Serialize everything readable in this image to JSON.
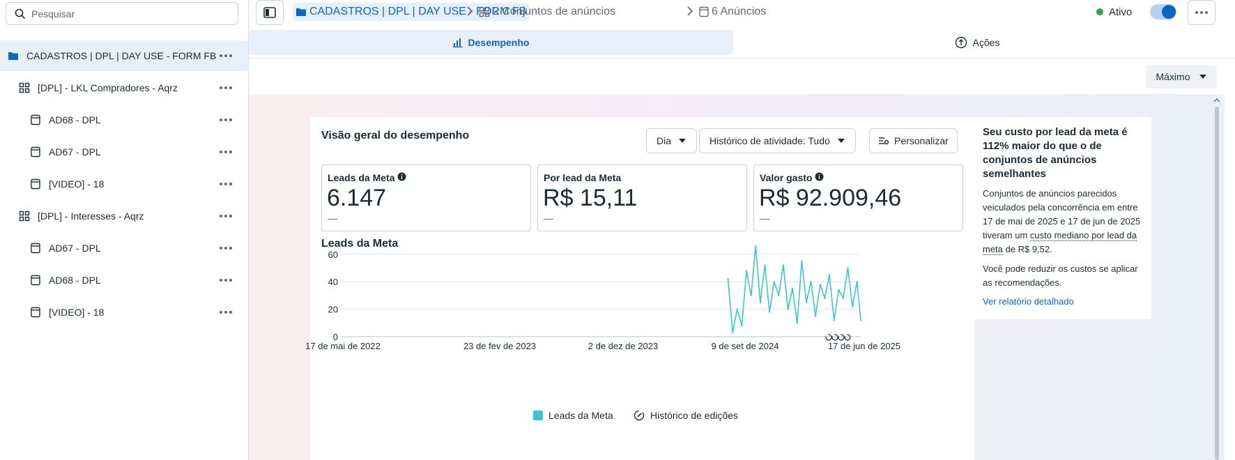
{
  "search": {
    "placeholder": "Pesquisar"
  },
  "tree": [
    {
      "label": "CADASTROS | DPL | DAY USE - FORM FB",
      "type": "campaign",
      "selected": true
    },
    {
      "label": "[DPL] - LKL Compradores - Aqrz",
      "type": "adset"
    },
    {
      "label": "AD68 - DPL",
      "type": "ad"
    },
    {
      "label": "AD67 - DPL",
      "type": "ad"
    },
    {
      "label": "[VIDEO] - 18",
      "type": "ad"
    },
    {
      "label": "[DPL] - Interesses - Aqrz",
      "type": "adset"
    },
    {
      "label": "AD67 - DPL",
      "type": "ad"
    },
    {
      "label": "AD68 - DPL",
      "type": "ad"
    },
    {
      "label": "[VIDEO] - 18",
      "type": "ad"
    }
  ],
  "breadcrumb": {
    "campaign": "CADASTROS | DPL | DAY USE - FORM FB",
    "adsets": "2 Conjuntos de anúncios",
    "ads": "6 Anúncios"
  },
  "status": {
    "label": "Ativo",
    "on": true,
    "color": "#31a24c"
  },
  "tabs": {
    "performance": "Desempenho",
    "actions": "Ações"
  },
  "range_button": "Máximo",
  "overview": {
    "title": "Visão geral do desempenho",
    "period": "Dia",
    "history": "Histórico de atividade: Tudo",
    "customize": "Personalizar"
  },
  "metrics": [
    {
      "label": "Leads da Meta",
      "value": "6.147",
      "delta": "—",
      "info": true
    },
    {
      "label": "Por lead da Meta",
      "value": "R$ 15,11",
      "delta": "—",
      "info": false
    },
    {
      "label": "Valor gasto",
      "value": "R$ 92.909,46",
      "delta": "—",
      "info": true
    }
  ],
  "chart_data": {
    "type": "line",
    "title": "Leads da Meta",
    "x_ticks": [
      "17 de mai de 2022",
      "23 de fev de 2023",
      "2 de dez de 2023",
      "9 de set de 2024",
      "17 de jun de 2025"
    ],
    "y_ticks": [
      0,
      20,
      40,
      60
    ],
    "ylim": [
      0,
      65
    ],
    "xlim": [
      "2022-05-17",
      "2025-06-17"
    ],
    "grid": true,
    "legend": [
      "Leads da Meta",
      "Histórico de edições"
    ],
    "series": [
      {
        "name": "Leads da Meta",
        "color": "#39c7c7",
        "x": [
          "2024-09-02",
          "2024-09-12",
          "2024-09-22",
          "2024-10-02",
          "2024-10-12",
          "2024-10-22",
          "2024-11-01",
          "2024-11-11",
          "2024-11-21",
          "2024-12-01",
          "2024-12-11",
          "2024-12-21",
          "2024-12-31",
          "2025-01-10",
          "2025-01-20",
          "2025-01-30",
          "2025-02-09",
          "2025-02-19",
          "2025-03-01",
          "2025-03-11",
          "2025-03-21",
          "2025-03-31",
          "2025-04-10",
          "2025-04-20",
          "2025-04-30",
          "2025-05-10",
          "2025-05-20",
          "2025-05-30",
          "2025-06-09",
          "2025-06-17"
        ],
        "values": [
          42,
          3,
          20,
          8,
          48,
          30,
          66,
          25,
          52,
          18,
          40,
          30,
          52,
          20,
          35,
          10,
          55,
          25,
          40,
          15,
          38,
          28,
          45,
          12,
          34,
          28,
          50,
          22,
          40,
          12
        ]
      }
    ]
  },
  "insight": {
    "title": "Seu custo por lead da meta é 112% maior do que o de conjuntos de anúncios semelhantes",
    "body_before": "Conjuntos de anúncios parecidos veiculados pela concorrência em entre 17 de mai de 2025 e 17 de jun de 2025 tiveram um ",
    "body_term": "custo mediano por lead da meta",
    "body_after": " de R$ 9,52.",
    "body2": "Você pode reduzir os custos se aplicar as recomendações.",
    "link": "Ver relatório detalhado"
  },
  "colors": {
    "accent": "#0a66c2",
    "line": "#39c7c7"
  }
}
